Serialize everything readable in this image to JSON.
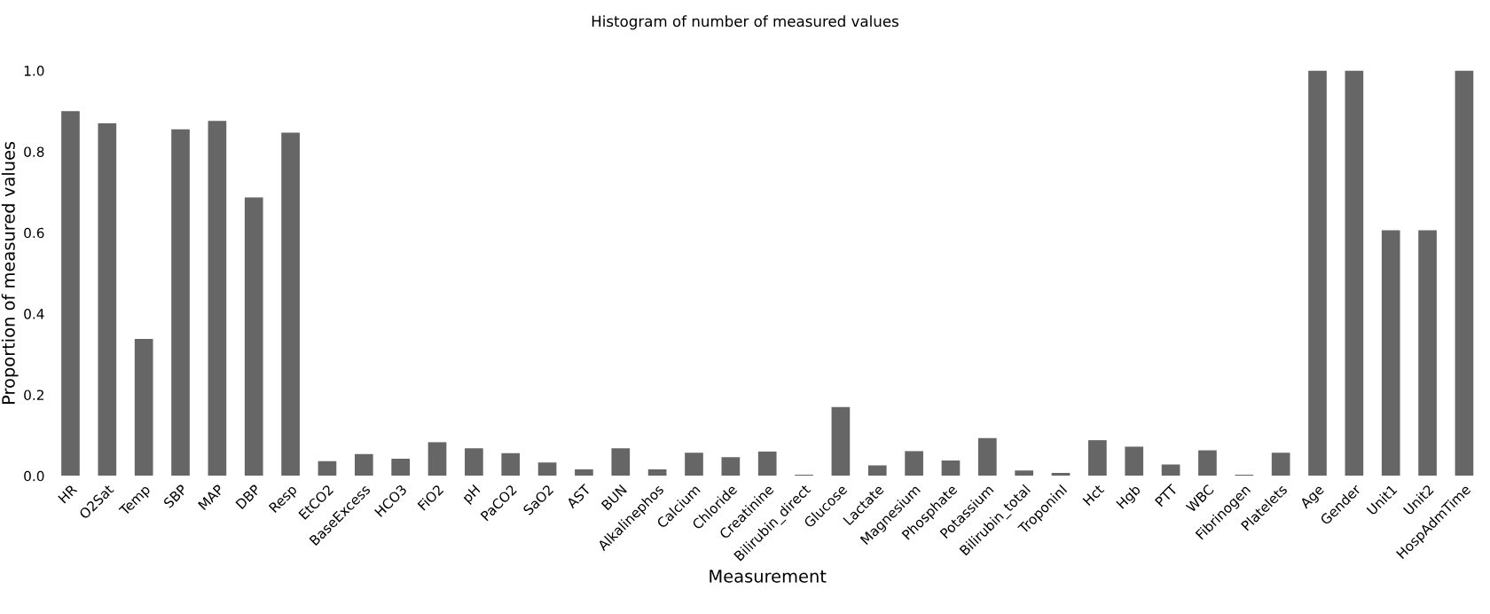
{
  "chart_data": {
    "type": "bar",
    "title": "Histogram of number of measured values",
    "xlabel": "Measurement",
    "ylabel": "Proportion of measured values",
    "categories": [
      "HR",
      "O2Sat",
      "Temp",
      "SBP",
      "MAP",
      "DBP",
      "Resp",
      "EtCO2",
      "BaseExcess",
      "HCO3",
      "FiO2",
      "pH",
      "PaCO2",
      "SaO2",
      "AST",
      "BUN",
      "Alkalinephos",
      "Calcium",
      "Chloride",
      "Creatinine",
      "Bilirubin_direct",
      "Glucose",
      "Lactate",
      "Magnesium",
      "Phosphate",
      "Potassium",
      "Bilirubin_total",
      "TroponinI",
      "Hct",
      "Hgb",
      "PTT",
      "WBC",
      "Fibrinogen",
      "Platelets",
      "Age",
      "Gender",
      "Unit1",
      "Unit2",
      "HospAdmTime"
    ],
    "values": [
      0.9,
      0.87,
      0.338,
      0.855,
      0.876,
      0.687,
      0.847,
      0.036,
      0.054,
      0.042,
      0.083,
      0.068,
      0.056,
      0.033,
      0.016,
      0.068,
      0.016,
      0.057,
      0.046,
      0.06,
      0.003,
      0.17,
      0.026,
      0.061,
      0.038,
      0.093,
      0.013,
      0.007,
      0.088,
      0.072,
      0.028,
      0.063,
      0.003,
      0.057,
      1.0,
      1.0,
      0.606,
      0.606,
      1.0
    ],
    "color": "#666666",
    "ylim": [
      0,
      1.0
    ],
    "yticks": [
      {
        "value": 0,
        "label": "0.0"
      },
      {
        "value": 0.2,
        "label": "0.2"
      },
      {
        "value": 0.4,
        "label": "0.4"
      },
      {
        "value": 0.6,
        "label": "0.6"
      },
      {
        "value": 0.8,
        "label": "0.8"
      },
      {
        "value": 1.0,
        "label": "1.0"
      }
    ],
    "grid": false,
    "legend": false
  }
}
